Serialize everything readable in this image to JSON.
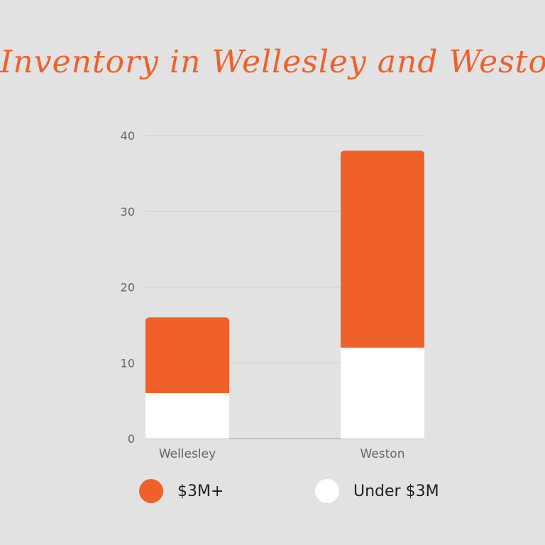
{
  "colors": {
    "background": "#e2e2e2",
    "accent": "#f0612a",
    "under": "#ffffff",
    "grid": "#c9c9c9",
    "tick_text": "#666666"
  },
  "chart_data": {
    "type": "bar",
    "stacked": true,
    "title": "Inventory in Wellesley and Weston",
    "categories": [
      "Wellesley",
      "Weston"
    ],
    "series": [
      {
        "name": "Under $3M",
        "color": "#ffffff",
        "values": [
          6,
          12
        ]
      },
      {
        "name": "$3M+",
        "color": "#f0612a",
        "values": [
          10,
          26
        ]
      }
    ],
    "ylim": [
      0,
      40
    ],
    "yticks": [
      0,
      10,
      20,
      30,
      40
    ],
    "grid": true,
    "legend_position": "bottom"
  }
}
